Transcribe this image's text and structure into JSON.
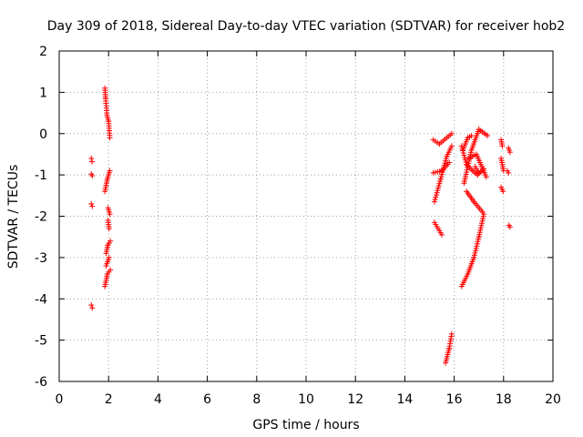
{
  "chart_data": {
    "type": "scatter",
    "title": "Day 309 of 2018, Sidereal Day-to-day VTEC variation (SDTVAR) for receiver hob2",
    "xlabel": "GPS time / hours",
    "ylabel": "SDTVAR / TECUs",
    "xlim": [
      0,
      20
    ],
    "ylim": [
      -6,
      2
    ],
    "xticks": [
      "0",
      "2",
      "4",
      "6",
      "8",
      "10",
      "12",
      "14",
      "16",
      "18",
      "20"
    ],
    "yticks": [
      "-6",
      "-5",
      "-4",
      "-3",
      "-2",
      "-1",
      "0",
      "1",
      "2"
    ],
    "grid": true,
    "marker": "+",
    "color": "#ff0000",
    "segments": [
      {
        "x": [
          1.3,
          1.33
        ],
        "y": [
          -0.6,
          -0.68
        ]
      },
      {
        "x": [
          1.3,
          1.34
        ],
        "y": [
          -0.98,
          -1.02
        ]
      },
      {
        "x": [
          1.3,
          1.34
        ],
        "y": [
          -1.7,
          -1.76
        ]
      },
      {
        "x": [
          1.3,
          1.34
        ],
        "y": [
          -4.15,
          -4.22
        ]
      },
      {
        "x": [
          1.85,
          1.88
        ],
        "y": [
          1.1,
          0.85
        ]
      },
      {
        "x": [
          1.88,
          1.93
        ],
        "y": [
          0.85,
          0.5
        ]
      },
      {
        "x": [
          1.93,
          2.0
        ],
        "y": [
          0.45,
          0.3
        ]
      },
      {
        "x": [
          2.0,
          2.05
        ],
        "y": [
          0.3,
          -0.1
        ]
      },
      {
        "x": [
          1.85,
          1.95
        ],
        "y": [
          -1.4,
          -1.1
        ]
      },
      {
        "x": [
          1.95,
          2.05
        ],
        "y": [
          -1.1,
          -0.9
        ]
      },
      {
        "x": [
          1.98,
          2.05
        ],
        "y": [
          -1.8,
          -1.95
        ]
      },
      {
        "x": [
          1.98,
          2.02
        ],
        "y": [
          -2.1,
          -2.3
        ]
      },
      {
        "x": [
          1.9,
          1.97
        ],
        "y": [
          -2.9,
          -2.7
        ]
      },
      {
        "x": [
          1.97,
          2.07
        ],
        "y": [
          -2.7,
          -2.6
        ]
      },
      {
        "x": [
          1.85,
          1.95
        ],
        "y": [
          -3.7,
          -3.4
        ]
      },
      {
        "x": [
          1.95,
          2.07
        ],
        "y": [
          -3.4,
          -3.3
        ]
      },
      {
        "x": [
          1.9,
          2.02
        ],
        "y": [
          -3.2,
          -3.0
        ]
      },
      {
        "x": [
          15.15,
          15.4
        ],
        "y": [
          -0.15,
          -0.25
        ]
      },
      {
        "x": [
          15.4,
          15.9
        ],
        "y": [
          -0.25,
          0.0
        ]
      },
      {
        "x": [
          15.15,
          15.5
        ],
        "y": [
          -0.95,
          -0.9
        ]
      },
      {
        "x": [
          15.5,
          15.8
        ],
        "y": [
          -0.9,
          -0.7
        ]
      },
      {
        "x": [
          15.2,
          15.45
        ],
        "y": [
          -1.65,
          -1.1
        ]
      },
      {
        "x": [
          15.45,
          15.7
        ],
        "y": [
          -1.1,
          -0.55
        ]
      },
      {
        "x": [
          15.7,
          15.9
        ],
        "y": [
          -0.55,
          -0.3
        ]
      },
      {
        "x": [
          15.2,
          15.5
        ],
        "y": [
          -2.15,
          -2.45
        ]
      },
      {
        "x": [
          15.65,
          15.8
        ],
        "y": [
          -5.55,
          -5.2
        ]
      },
      {
        "x": [
          15.8,
          15.9
        ],
        "y": [
          -5.2,
          -4.85
        ]
      },
      {
        "x": [
          16.3,
          16.55
        ],
        "y": [
          -3.7,
          -3.4
        ]
      },
      {
        "x": [
          16.55,
          16.8
        ],
        "y": [
          -3.4,
          -3.0
        ]
      },
      {
        "x": [
          16.8,
          17.0
        ],
        "y": [
          -3.0,
          -2.5
        ]
      },
      {
        "x": [
          17.0,
          17.2
        ],
        "y": [
          -2.5,
          -1.95
        ]
      },
      {
        "x": [
          16.35,
          16.55
        ],
        "y": [
          -0.4,
          -0.1
        ]
      },
      {
        "x": [
          16.55,
          16.7
        ],
        "y": [
          -0.1,
          -0.05
        ]
      },
      {
        "x": [
          16.3,
          16.5
        ],
        "y": [
          -0.3,
          -0.75
        ]
      },
      {
        "x": [
          16.5,
          16.75
        ],
        "y": [
          -0.75,
          -0.9
        ]
      },
      {
        "x": [
          16.75,
          16.95
        ],
        "y": [
          -0.9,
          -1.0
        ]
      },
      {
        "x": [
          16.95,
          17.2
        ],
        "y": [
          -1.0,
          -0.85
        ]
      },
      {
        "x": [
          16.4,
          16.7
        ],
        "y": [
          -1.2,
          -0.4
        ]
      },
      {
        "x": [
          16.7,
          17.0
        ],
        "y": [
          -0.4,
          0.1
        ]
      },
      {
        "x": [
          17.0,
          17.35
        ],
        "y": [
          0.1,
          -0.05
        ]
      },
      {
        "x": [
          16.6,
          16.9
        ],
        "y": [
          -0.6,
          -0.5
        ]
      },
      {
        "x": [
          16.9,
          17.3
        ],
        "y": [
          -0.5,
          -1.05
        ]
      },
      {
        "x": [
          16.5,
          16.8
        ],
        "y": [
          -1.4,
          -1.65
        ]
      },
      {
        "x": [
          16.8,
          17.15
        ],
        "y": [
          -1.65,
          -1.9
        ]
      },
      {
        "x": [
          16.85,
          17.0
        ],
        "y": [
          -0.8,
          -0.95
        ]
      },
      {
        "x": [
          17.9,
          17.95
        ],
        "y": [
          -0.15,
          -0.3
        ]
      },
      {
        "x": [
          17.9,
          18.0
        ],
        "y": [
          -0.6,
          -0.9
        ]
      },
      {
        "x": [
          17.9,
          17.98
        ],
        "y": [
          -1.3,
          -1.4
        ]
      },
      {
        "x": [
          18.2,
          18.26
        ],
        "y": [
          -0.35,
          -0.45
        ]
      },
      {
        "x": [
          18.15,
          18.2
        ],
        "y": [
          -0.9,
          -0.95
        ]
      },
      {
        "x": [
          18.22,
          18.26
        ],
        "y": [
          -2.22,
          -2.26
        ]
      }
    ]
  }
}
